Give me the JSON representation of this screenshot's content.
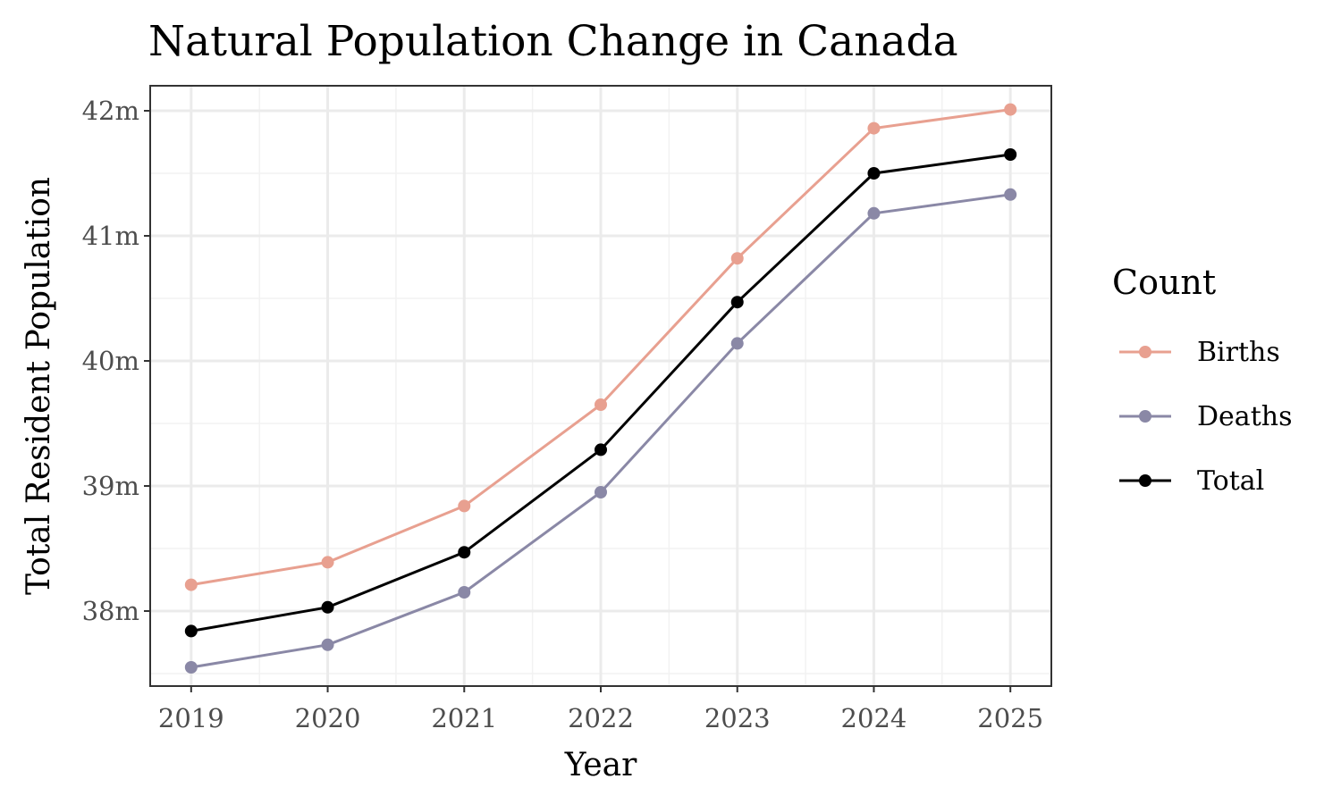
{
  "chart_data": {
    "type": "line",
    "title": "Natural Population Change in Canada",
    "xlabel": "Year",
    "ylabel": "Total Resident Population",
    "x": [
      2019,
      2020,
      2021,
      2022,
      2023,
      2024,
      2025
    ],
    "x_tick_labels": [
      "2019",
      "2020",
      "2021",
      "2022",
      "2023",
      "2024",
      "2025"
    ],
    "y_ticks": [
      38,
      39,
      40,
      41,
      42
    ],
    "y_tick_labels": [
      "38m",
      "39m",
      "40m",
      "41m",
      "42m"
    ],
    "ylim": [
      37.4,
      42.2
    ],
    "xlim": [
      2018.7,
      2025.3
    ],
    "grid": true,
    "legend": {
      "title": "Count",
      "position": "right"
    },
    "series": [
      {
        "name": "Births",
        "color": "#E8A090",
        "values": [
          38.21,
          38.39,
          38.84,
          39.65,
          40.82,
          41.86,
          42.01
        ]
      },
      {
        "name": "Deaths",
        "color": "#8A88A6",
        "values": [
          37.55,
          37.73,
          38.15,
          38.95,
          40.14,
          41.18,
          41.33
        ]
      },
      {
        "name": "Total",
        "color": "#000000",
        "values": [
          37.84,
          38.03,
          38.47,
          39.29,
          40.47,
          41.5,
          41.65
        ]
      }
    ]
  }
}
